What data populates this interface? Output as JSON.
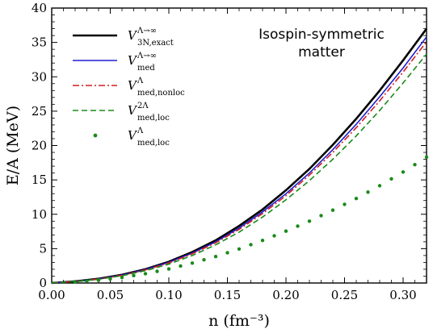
{
  "chart_data": {
    "type": "line",
    "xlabel": "n (fm⁻³)",
    "ylabel": "E/A (MeV)",
    "xlim": [
      0.0,
      0.32
    ],
    "ylim": [
      0,
      40
    ],
    "x_ticks": [
      "0.00",
      "0.05",
      "0.10",
      "0.15",
      "0.20",
      "0.25",
      "0.30"
    ],
    "y_ticks": [
      "0",
      "5",
      "10",
      "15",
      "20",
      "25",
      "30",
      "35",
      "40"
    ],
    "annotation": [
      "Isospin-symmetric",
      "matter"
    ],
    "legend_position": "top-left",
    "x": [
      0.0,
      0.02,
      0.04,
      0.06,
      0.08,
      0.1,
      0.12,
      0.14,
      0.16,
      0.18,
      0.2,
      0.22,
      0.24,
      0.26,
      0.28,
      0.3,
      0.32
    ],
    "series": [
      {
        "main": "V",
        "sup": "Λ→∞",
        "sub": "3N,exact",
        "color": "#000000",
        "style": "solid",
        "values": [
          0.0,
          0.25,
          0.62,
          1.2,
          2.0,
          3.1,
          4.5,
          6.2,
          8.3,
          10.7,
          13.5,
          16.6,
          20.1,
          23.9,
          28.0,
          32.4,
          37.0
        ]
      },
      {
        "main": "V",
        "sup": "Λ→∞",
        "sub": "med",
        "color": "#1f1fd0",
        "style": "solid",
        "values": [
          0.0,
          0.24,
          0.6,
          1.15,
          1.95,
          3.0,
          4.35,
          6.0,
          8.0,
          10.35,
          13.0,
          16.0,
          19.4,
          23.1,
          27.1,
          31.3,
          35.8
        ]
      },
      {
        "main": "V",
        "sup": "Λ",
        "sub": "med,nonloc",
        "color": "#d01f1f",
        "style": "dashdot",
        "values": [
          0.0,
          0.24,
          0.58,
          1.12,
          1.9,
          2.92,
          4.25,
          5.85,
          7.8,
          10.1,
          12.7,
          15.7,
          19.0,
          22.6,
          26.5,
          30.7,
          35.1
        ]
      },
      {
        "main": "V",
        "sup": "2Λ",
        "sub": "med,loc",
        "color": "#1a8a1a",
        "style": "dashed",
        "values": [
          0.0,
          0.22,
          0.55,
          1.05,
          1.8,
          2.75,
          4.0,
          5.55,
          7.4,
          9.6,
          12.1,
          14.9,
          18.0,
          21.4,
          25.1,
          29.1,
          33.3
        ]
      },
      {
        "main": "V",
        "sup": "Λ",
        "sub": "med,loc",
        "color": "#1a8a1a",
        "style": "dotted",
        "values": [
          0.0,
          0.15,
          0.4,
          0.8,
          1.35,
          2.05,
          2.9,
          3.85,
          4.95,
          6.2,
          7.55,
          9.0,
          10.6,
          12.3,
          14.15,
          16.15,
          18.3
        ]
      }
    ]
  }
}
